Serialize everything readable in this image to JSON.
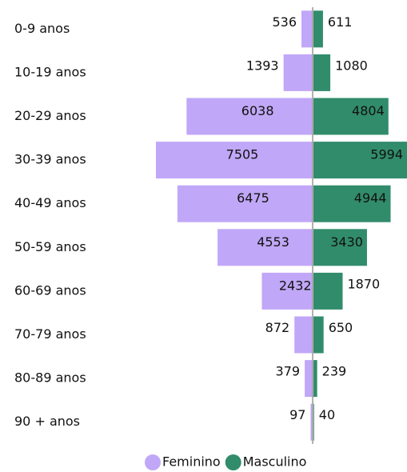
{
  "chart_data": {
    "type": "pyramid",
    "categories": [
      "0-9 anos",
      "10-19 anos",
      "20-29 anos",
      "30-39 anos",
      "40-49 anos",
      "50-59 anos",
      "60-69 anos",
      "70-79 anos",
      "80-89 anos",
      "90 + anos"
    ],
    "series": [
      {
        "name": "Feminino",
        "color": "#c1a7f7",
        "values": [
          536,
          1393,
          6038,
          7505,
          6475,
          4553,
          2432,
          872,
          379,
          97
        ]
      },
      {
        "name": "Masculino",
        "color": "#318c6c",
        "values": [
          611,
          1080,
          4804,
          5994,
          4944,
          3430,
          1870,
          650,
          239,
          40
        ]
      }
    ],
    "legend": "bottom"
  }
}
